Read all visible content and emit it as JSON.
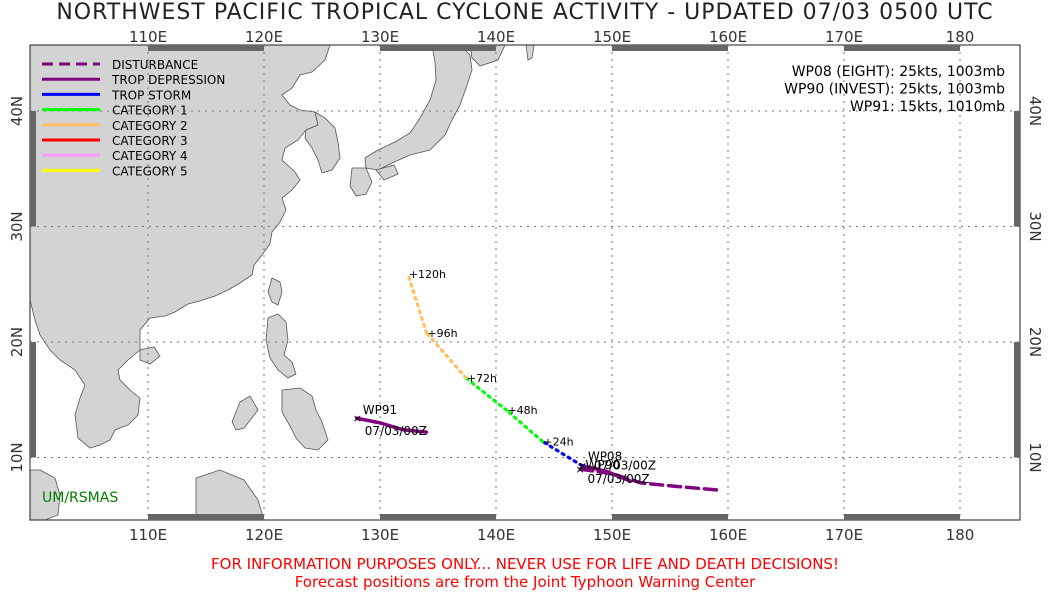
{
  "title": "NORTHWEST PACIFIC TROPICAL CYCLONE ACTIVITY - UPDATED 07/03 0500 UTC",
  "map": {
    "lon_labels": [
      "110E",
      "120E",
      "130E",
      "140E",
      "150E",
      "160E",
      "170E",
      "180"
    ],
    "lat_labels": [
      "40N",
      "30N",
      "20N",
      "10N"
    ],
    "lon_values": [
      110,
      120,
      130,
      140,
      150,
      160,
      170,
      180
    ],
    "lat_values": [
      40,
      30,
      20,
      10
    ],
    "credit": "UM/RSMAS",
    "credit_color": "#008000",
    "land_color": "#d3d3d3",
    "ocean_color": "#ffffff"
  },
  "legend": [
    {
      "label": "DISTURBANCE",
      "color": "#800080",
      "style": "dashed"
    },
    {
      "label": "TROP DEPRESSION",
      "color": "#800080",
      "style": "solid"
    },
    {
      "label": "TROP STORM",
      "color": "#0000ff",
      "style": "solid"
    },
    {
      "label": "CATEGORY 1",
      "color": "#00ff00",
      "style": "solid"
    },
    {
      "label": "CATEGORY 2",
      "color": "#ffc060",
      "style": "solid"
    },
    {
      "label": "CATEGORY 3",
      "color": "#ff0000",
      "style": "solid"
    },
    {
      "label": "CATEGORY 4",
      "color": "#ff99ff",
      "style": "solid"
    },
    {
      "label": "CATEGORY 5",
      "color": "#ffff00",
      "style": "solid"
    }
  ],
  "storm_info": [
    "WP08 (EIGHT): 25kts, 1003mb",
    "WP90 (INVEST): 25kts, 1003mb",
    "WP91: 15kts, 1010mb"
  ],
  "storms": [
    {
      "name": "WP91",
      "label": "WP91",
      "time_label": "07/03/00Z",
      "current": {
        "lon": 128.0,
        "lat": 13.4
      },
      "track": [
        [
          128.0,
          13.4
        ],
        [
          130.0,
          13.0
        ],
        [
          132.0,
          12.4
        ],
        [
          134.0,
          12.2
        ]
      ],
      "track_style": "td"
    },
    {
      "name": "WP90",
      "label": "WP90",
      "time_label": "07/03/00Z",
      "current": {
        "lon": 147.2,
        "lat": 9.0
      },
      "track": [
        [
          159.0,
          7.2
        ],
        [
          155.5,
          7.5
        ],
        [
          152.5,
          7.8
        ],
        [
          150.0,
          8.6
        ],
        [
          147.2,
          9.0
        ]
      ],
      "track_style": "dist"
    },
    {
      "name": "WP08",
      "label": "WP08",
      "time_label": "07/03/00Z",
      "current": {
        "lon": 147.4,
        "lat": 9.3
      },
      "track": [
        [
          147.4,
          9.3
        ],
        [
          149.5,
          8.8
        ],
        [
          151.5,
          8.0
        ]
      ],
      "track_style": "td"
    }
  ],
  "forecast": {
    "points": [
      {
        "lon": 147.4,
        "lat": 9.3,
        "cat": "ts"
      },
      {
        "lon": 144.0,
        "lat": 11.4,
        "cat": "ts"
      },
      {
        "lon": 140.9,
        "lat": 14.1,
        "cat": "cat1"
      },
      {
        "lon": 137.4,
        "lat": 16.9,
        "cat": "cat1"
      },
      {
        "lon": 134.0,
        "lat": 20.8,
        "cat": "cat2"
      },
      {
        "lon": 132.4,
        "lat": 25.9,
        "cat": "cat2"
      }
    ],
    "labels": [
      {
        "text": "+24h",
        "lon": 144.0,
        "lat": 11.4
      },
      {
        "text": "+48h",
        "lon": 140.9,
        "lat": 14.1
      },
      {
        "text": "+72h",
        "lon": 137.4,
        "lat": 16.9
      },
      {
        "text": "+96h",
        "lon": 134.0,
        "lat": 20.8
      },
      {
        "text": "+120h",
        "lon": 132.4,
        "lat": 25.9
      }
    ]
  },
  "disclaimer": {
    "line1": "FOR INFORMATION PURPOSES ONLY... NEVER USE FOR LIFE AND DEATH DECISIONS!",
    "line2": "Forecast positions are from the Joint Typhoon Warning Center"
  }
}
